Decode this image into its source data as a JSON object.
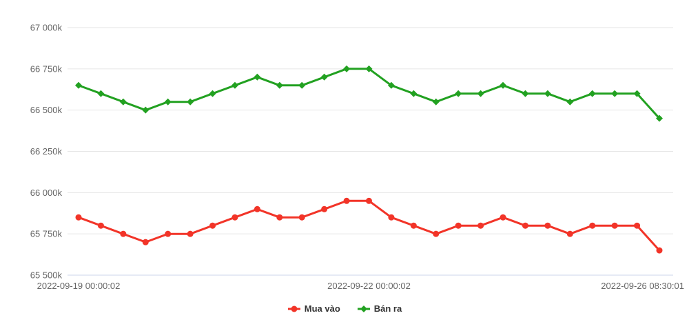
{
  "chart_data": {
    "type": "line",
    "title": "",
    "xlabel": "",
    "ylabel": "",
    "ylim": [
      65500,
      67000
    ],
    "grid": true,
    "legend_position": "bottom-center",
    "num_points": 27,
    "y_ticks": [
      {
        "value": 65500,
        "label": "65 500k"
      },
      {
        "value": 65750,
        "label": "65 750k"
      },
      {
        "value": 66000,
        "label": "66 000k"
      },
      {
        "value": 66250,
        "label": "66 250k"
      },
      {
        "value": 66500,
        "label": "66 500k"
      },
      {
        "value": 66750,
        "label": "66 750k"
      },
      {
        "value": 67000,
        "label": "67 000k"
      }
    ],
    "x_ticks": [
      {
        "point_index": 0,
        "label": "2022-09-19 00:00:02"
      },
      {
        "point_index": 13,
        "label": "2022-09-22 00:00:02"
      },
      {
        "point_index": 26,
        "label": "2022-09-26 08:30:01"
      }
    ],
    "series": [
      {
        "name": "Mua vào",
        "color": "#f23428",
        "marker": "circle",
        "values": [
          65850,
          65800,
          65750,
          65700,
          65750,
          65750,
          65800,
          65850,
          65900,
          65850,
          65850,
          65900,
          65950,
          65950,
          65850,
          65800,
          65750,
          65800,
          65800,
          65850,
          65800,
          65800,
          65750,
          65800,
          65800,
          65800,
          65650
        ]
      },
      {
        "name": "Bán ra",
        "color": "#22a121",
        "marker": "diamond",
        "values": [
          66650,
          66600,
          66550,
          66500,
          66550,
          66550,
          66600,
          66650,
          66700,
          66650,
          66650,
          66700,
          66750,
          66750,
          66650,
          66600,
          66550,
          66600,
          66600,
          66650,
          66600,
          66600,
          66550,
          66600,
          66600,
          66600,
          66450
        ]
      }
    ]
  },
  "colors": {
    "background": "#ffffff",
    "grid_line": "#e6e6e6",
    "axis_line": "#ccd6eb",
    "axis_label": "#666666",
    "legend_text": "#333333"
  }
}
